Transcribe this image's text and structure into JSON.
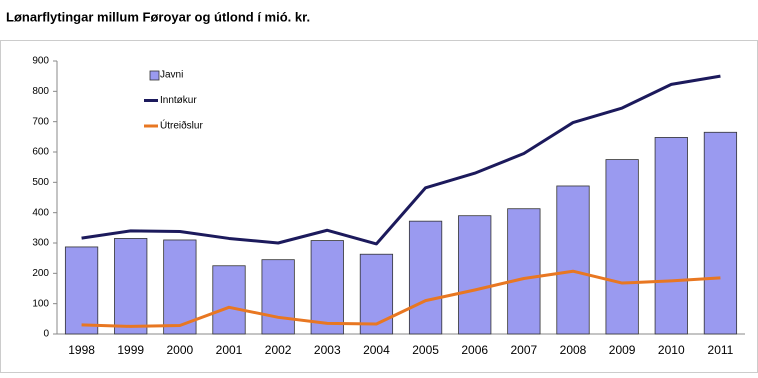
{
  "chart_data": {
    "type": "bar",
    "title": "Lønarflytingar millum Føroyar og útlond í mió. kr.",
    "categories": [
      "1998",
      "1999",
      "2000",
      "2001",
      "2002",
      "2003",
      "2004",
      "2005",
      "2006",
      "2007",
      "2008",
      "2009",
      "2010",
      "2011"
    ],
    "series": [
      {
        "name": "Javni",
        "type": "bar",
        "color": "#9a9af0",
        "values": [
          287,
          315,
          310,
          225,
          245,
          308,
          263,
          372,
          390,
          413,
          488,
          575,
          648,
          665
        ]
      },
      {
        "name": "Inntøkur",
        "type": "line",
        "color": "#1c1a5c",
        "values": [
          316,
          340,
          338,
          315,
          300,
          342,
          297,
          482,
          530,
          595,
          697,
          745,
          823,
          850
        ]
      },
      {
        "name": "Útreiðslur",
        "type": "line",
        "color": "#e87722",
        "values": [
          30,
          25,
          28,
          88,
          55,
          35,
          33,
          110,
          145,
          183,
          207,
          168,
          175,
          185
        ]
      }
    ],
    "ylim": [
      0,
      900
    ],
    "yticks": [
      0,
      100,
      200,
      300,
      400,
      500,
      600,
      700,
      800,
      900
    ],
    "legend": "upper left"
  }
}
